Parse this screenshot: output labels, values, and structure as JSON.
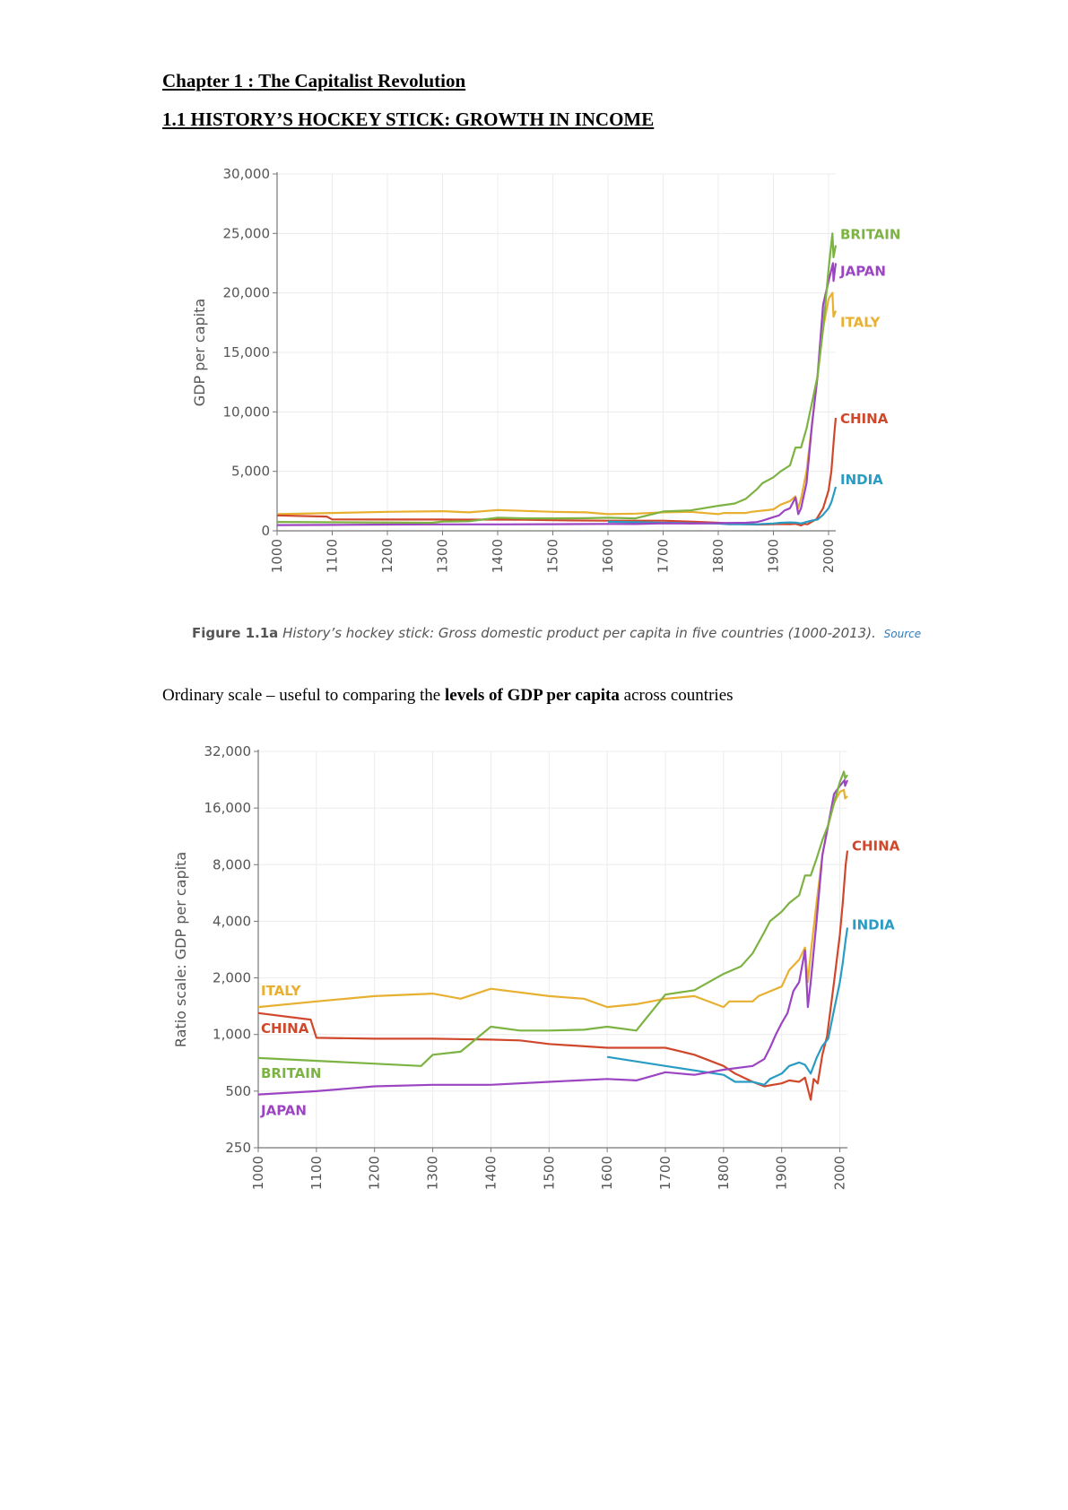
{
  "heading": "Chapter 1 : The Capitalist Revolution",
  "subheading": "1.1 HISTORY’S HOCKEY STICK: GROWTH IN INCOME",
  "caption": {
    "figure": "Figure 1.1a",
    "text": "History’s hockey stick: Gross domestic product per capita in five countries (1000-2013).",
    "source": "Source"
  },
  "paragraph": {
    "before": "Ordinary scale – useful to comparing the ",
    "bold": "levels of GDP per capita",
    "after": " across countries"
  },
  "colors": {
    "BRITAIN": "#7cb342",
    "JAPAN": "#9c45c2",
    "ITALY": "#e8b030",
    "CHINA": "#d0482c",
    "INDIA": "#2a9cc4"
  },
  "chart_data": [
    {
      "type": "line",
      "scale": "linear",
      "ylabel": "GDP per capita",
      "xlim": [
        1000,
        2013
      ],
      "ylim": [
        0,
        30000
      ],
      "xticks": [
        "1000",
        "1100",
        "1200",
        "1300",
        "1400",
        "1500",
        "1600",
        "1700",
        "1800",
        "1900",
        "2000"
      ],
      "yticks": [
        "0",
        "5,000",
        "10,000",
        "15,000",
        "20,000",
        "25,000",
        "30,000"
      ],
      "grid": true,
      "series_labels_at_end": [
        "BRITAIN",
        "JAPAN",
        "ITALY",
        "CHINA",
        "INDIA"
      ],
      "series": [
        {
          "name": "BRITAIN",
          "x": [
            1000,
            1280,
            1300,
            1348,
            1400,
            1450,
            1500,
            1560,
            1600,
            1650,
            1700,
            1750,
            1800,
            1830,
            1850,
            1870,
            1880,
            1900,
            1913,
            1930,
            1940,
            1950,
            1960,
            1970,
            1980,
            1990,
            2000,
            2007,
            2009,
            2013
          ],
          "y": [
            750,
            680,
            780,
            810,
            1100,
            1050,
            1050,
            1060,
            1100,
            1050,
            1630,
            1720,
            2100,
            2300,
            2700,
            3500,
            4000,
            4500,
            5000,
            5500,
            7000,
            7000,
            8600,
            10800,
            13000,
            17000,
            22000,
            25000,
            23000,
            24000
          ]
        },
        {
          "name": "JAPAN",
          "x": [
            1000,
            1100,
            1200,
            1300,
            1400,
            1500,
            1600,
            1650,
            1700,
            1750,
            1800,
            1850,
            1870,
            1880,
            1890,
            1900,
            1910,
            1920,
            1930,
            1940,
            1945,
            1950,
            1960,
            1970,
            1980,
            1990,
            2000,
            2008,
            2009,
            2013
          ],
          "y": [
            480,
            500,
            530,
            540,
            540,
            560,
            580,
            570,
            630,
            610,
            650,
            680,
            740,
            850,
            1000,
            1150,
            1300,
            1700,
            1900,
            2800,
            1400,
            1900,
            4000,
            9000,
            13000,
            19000,
            21000,
            22500,
            21000,
            22500
          ]
        },
        {
          "name": "ITALY",
          "x": [
            1000,
            1100,
            1200,
            1300,
            1348,
            1400,
            1500,
            1560,
            1600,
            1650,
            1700,
            1750,
            1800,
            1810,
            1850,
            1860,
            1900,
            1913,
            1930,
            1940,
            1945,
            1950,
            1960,
            1970,
            1980,
            1990,
            2000,
            2007,
            2009,
            2013
          ],
          "y": [
            1400,
            1500,
            1600,
            1650,
            1550,
            1750,
            1600,
            1550,
            1400,
            1450,
            1550,
            1600,
            1400,
            1500,
            1500,
            1600,
            1800,
            2200,
            2500,
            2900,
            1900,
            2700,
            5000,
            9000,
            13000,
            17000,
            19500,
            20000,
            18000,
            18500
          ]
        },
        {
          "name": "CHINA",
          "x": [
            1000,
            1090,
            1100,
            1200,
            1300,
            1400,
            1450,
            1500,
            1600,
            1700,
            1750,
            1800,
            1820,
            1850,
            1870,
            1900,
            1913,
            1930,
            1940,
            1950,
            1955,
            1962,
            1970,
            1978,
            1990,
            2000,
            2005,
            2010,
            2013
          ],
          "y": [
            1300,
            1200,
            960,
            950,
            950,
            940,
            930,
            890,
            850,
            850,
            780,
            680,
            620,
            560,
            530,
            550,
            570,
            560,
            590,
            450,
            580,
            550,
            780,
            980,
            1900,
            3400,
            5000,
            8000,
            9500
          ]
        },
        {
          "name": "INDIA",
          "x": [
            1600,
            1700,
            1800,
            1820,
            1850,
            1870,
            1880,
            1900,
            1913,
            1930,
            1940,
            1950,
            1960,
            1970,
            1980,
            1990,
            2000,
            2005,
            2010,
            2013
          ],
          "y": [
            760,
            680,
            610,
            560,
            560,
            540,
            580,
            620,
            680,
            710,
            690,
            620,
            750,
            870,
            950,
            1350,
            1900,
            2400,
            3200,
            3700
          ]
        }
      ]
    },
    {
      "type": "line",
      "scale": "log2",
      "ylabel": "Ratio scale: GDP per capita",
      "xlim": [
        1000,
        2013
      ],
      "ylim": [
        250,
        32000
      ],
      "xticks": [
        "1000",
        "1100",
        "1200",
        "1300",
        "1400",
        "1500",
        "1600",
        "1700",
        "1800",
        "1900",
        "2000"
      ],
      "yticks": [
        "250",
        "500",
        "1,000",
        "2,000",
        "4,000",
        "8,000",
        "16,000",
        "32,000"
      ],
      "grid": true,
      "series_labels_at_end": [
        "CHINA",
        "INDIA"
      ],
      "series_labels_at_start": [
        "ITALY",
        "CHINA",
        "BRITAIN",
        "JAPAN"
      ]
    }
  ]
}
